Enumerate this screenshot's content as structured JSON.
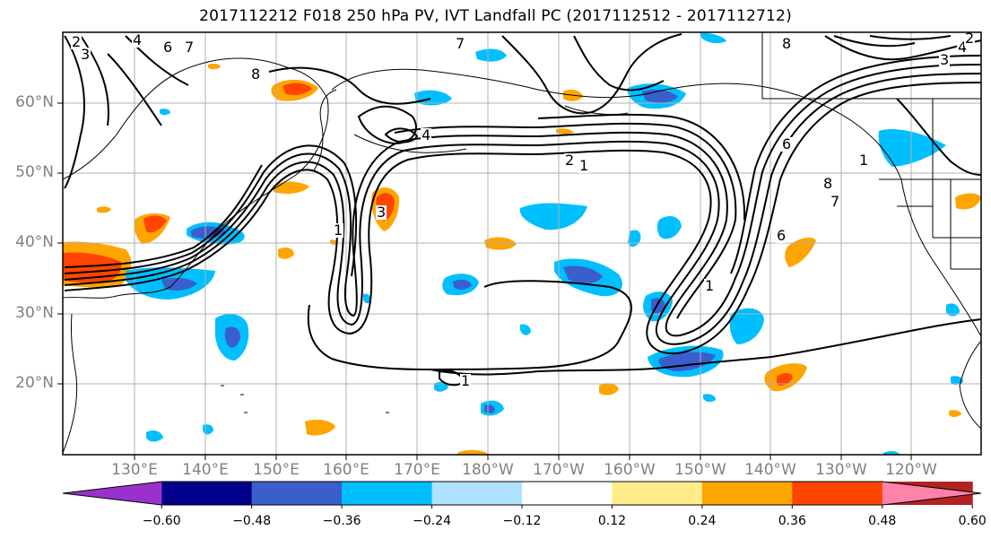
{
  "title": "2017112212 F018 250 hPa PV, IVT Landfall PC (2017112512 - 2017112712)",
  "lat_labels": [
    "60°N",
    "50°N",
    "40°N",
    "30°N",
    "20°N"
  ],
  "lon_labels": [
    "130°E",
    "140°E",
    "150°E",
    "160°E",
    "170°E",
    "180°W",
    "170°W",
    "160°W",
    "150°W",
    "140°W",
    "130°W",
    "120°W"
  ],
  "contour_labels": [
    "2",
    "3",
    "4",
    "6",
    "7",
    "8",
    "7",
    "8",
    "3",
    "4",
    "2",
    "1",
    "4",
    "1",
    "1",
    "2",
    "3",
    "8",
    "7",
    "6",
    "1",
    "6",
    "1"
  ],
  "colorbar": {
    "tick_labels": [
      "−0.60",
      "−0.48",
      "−0.36",
      "−0.24",
      "−0.12",
      "0.12",
      "0.24",
      "0.36",
      "0.48",
      "0.60"
    ],
    "colors": [
      "#9932cc",
      "#00008b",
      "#3a5fcd",
      "#00bfff",
      "#b0e2ff",
      "#ffffff",
      "#ffec8b",
      "#ffa500",
      "#ff4500",
      "#b22222",
      "#ff82ab"
    ]
  }
}
